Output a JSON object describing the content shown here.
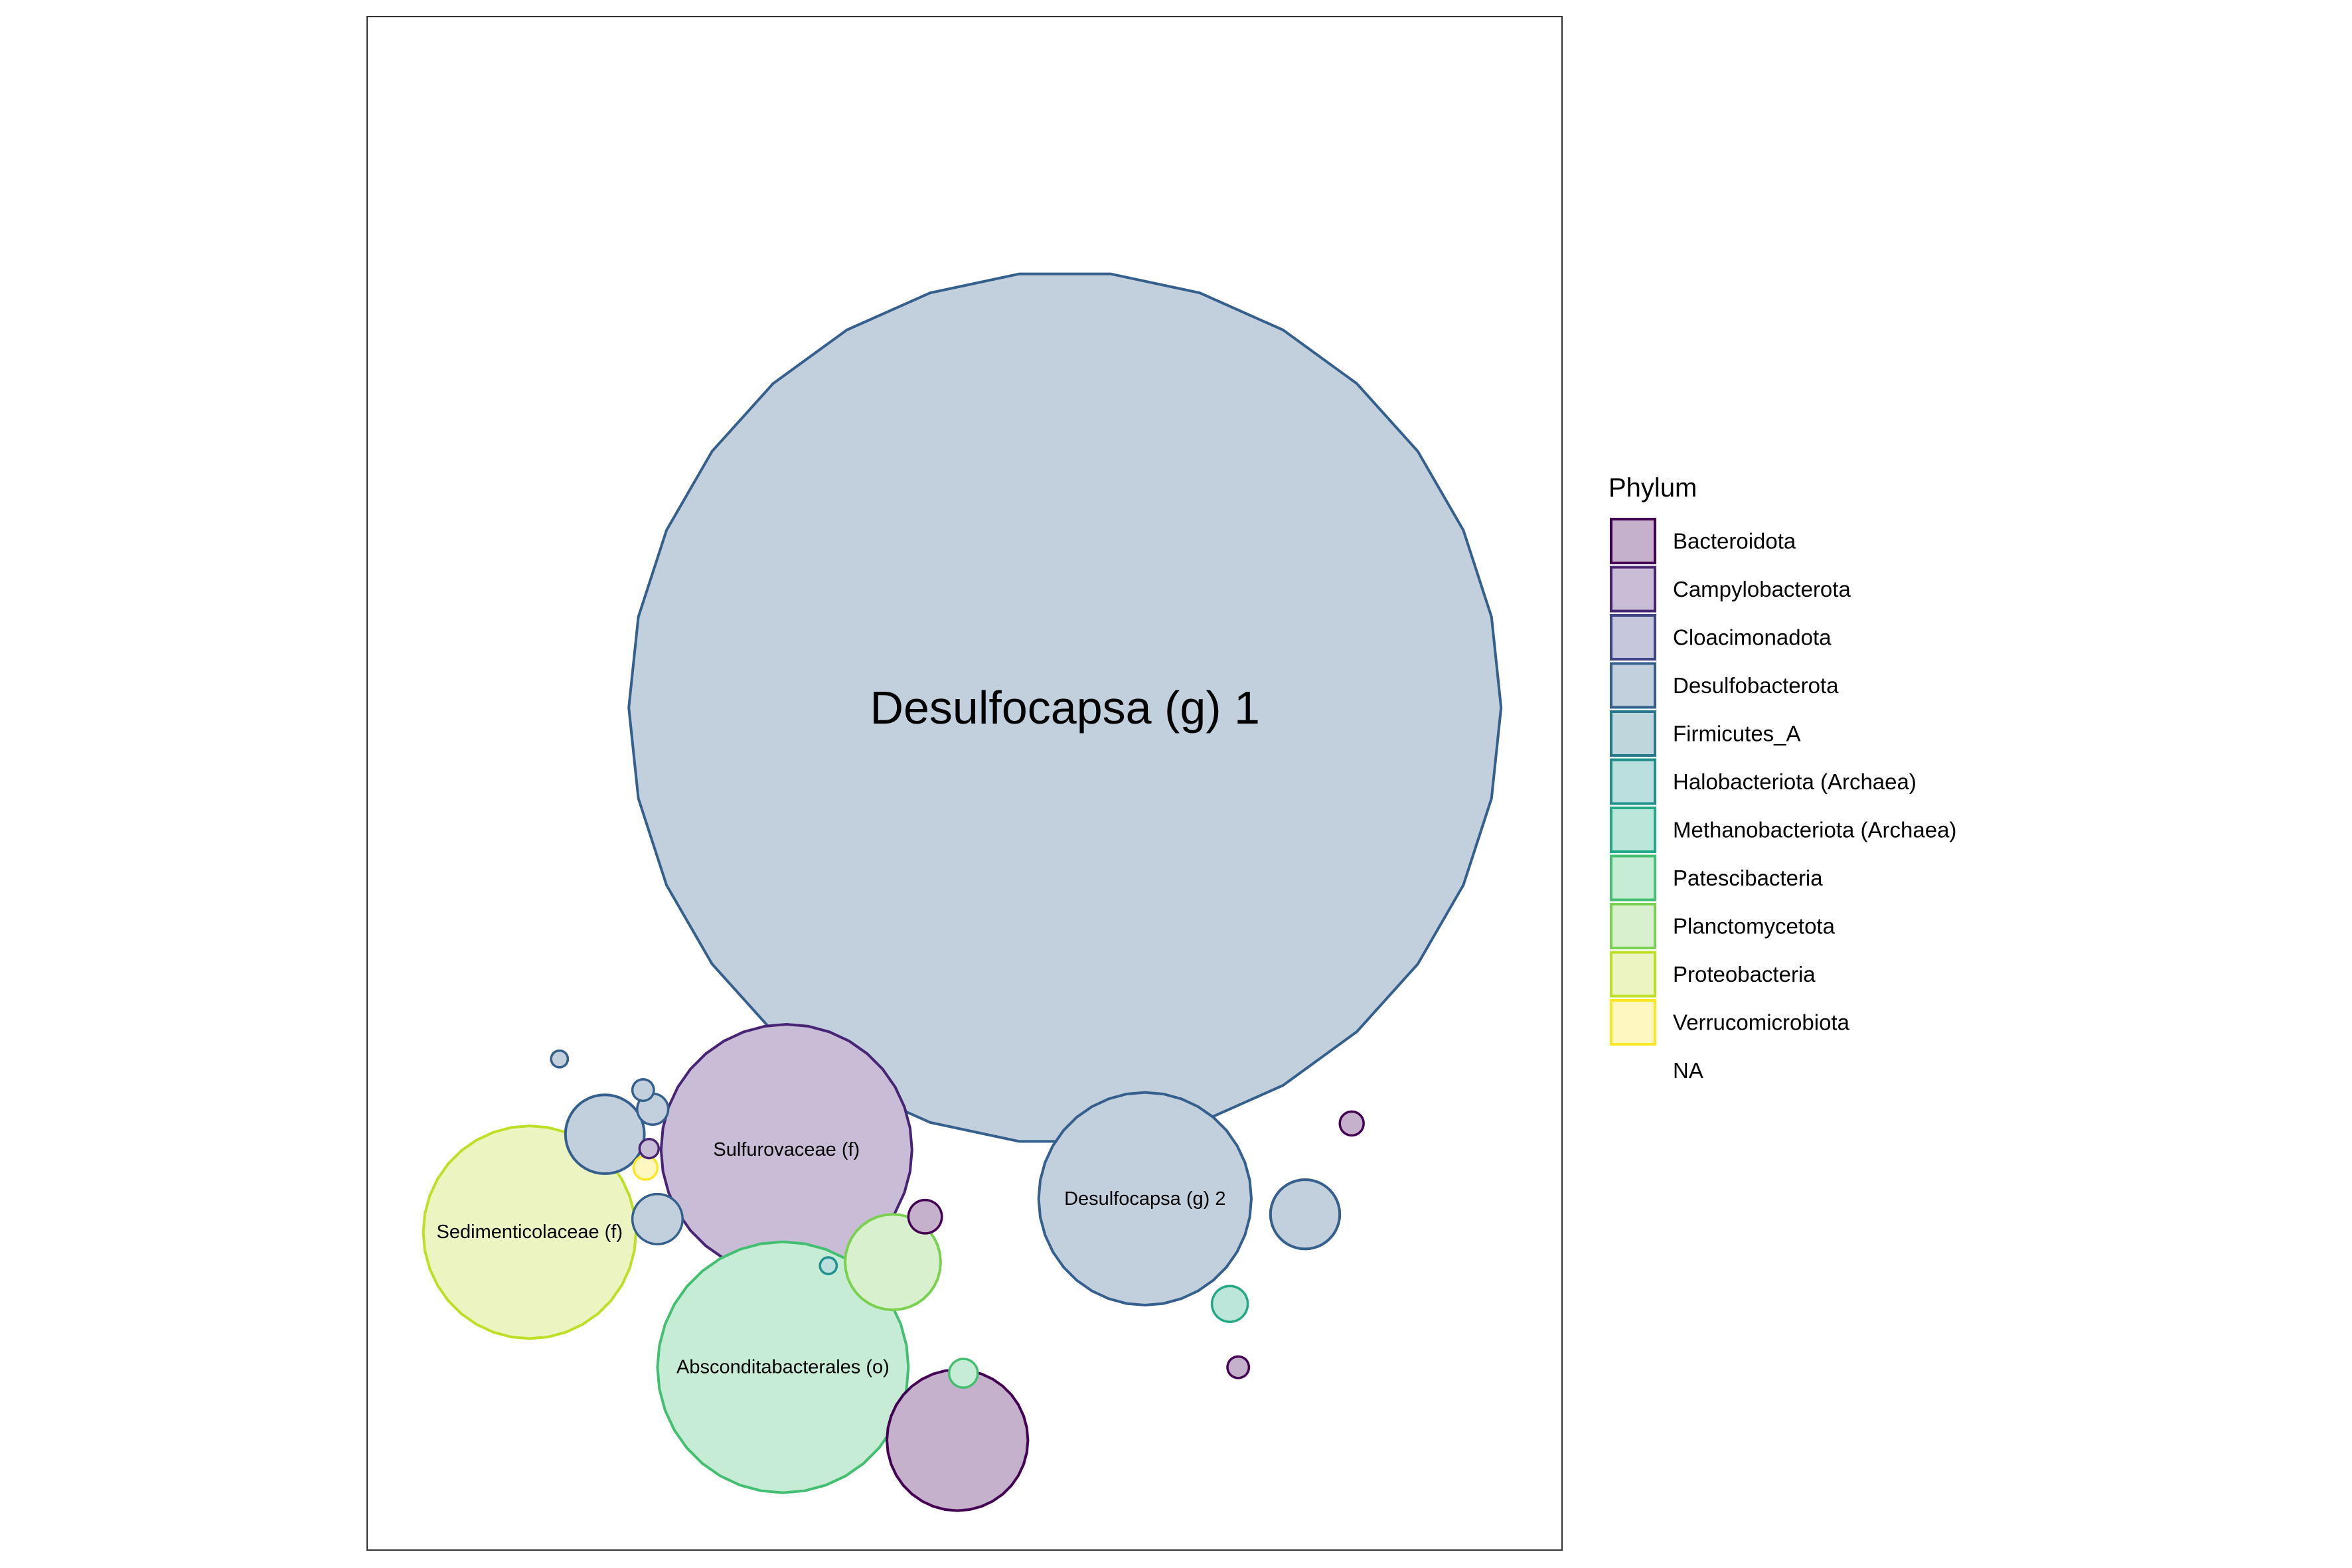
{
  "chart_data": {
    "type": "packed-bubble",
    "title": "",
    "xlabel": "",
    "ylabel": "",
    "legend": {
      "title": "Phylum",
      "placement": "right",
      "entries": [
        {
          "name": "Bacteroidota",
          "stroke": "#440154",
          "fill": "#c6b1cc"
        },
        {
          "name": "Campylobacterota",
          "stroke": "#482475",
          "fill": "#c8bcd6"
        },
        {
          "name": "Cloacimonadota",
          "stroke": "#414487",
          "fill": "#c6c7dc"
        },
        {
          "name": "Desulfobacterota",
          "stroke": "#355f8d",
          "fill": "#c2cfdd"
        },
        {
          "name": "Firmicutes_A",
          "stroke": "#2a788e",
          "fill": "#bfd6dd"
        },
        {
          "name": "Halobacteriota (Archaea)",
          "stroke": "#21908d",
          "fill": "#bbdfde"
        },
        {
          "name": "Methanobacteriota (Archaea)",
          "stroke": "#22a884",
          "fill": "#bce6d9"
        },
        {
          "name": "Patescibacteria",
          "stroke": "#43bf71",
          "fill": "#c6ecd5"
        },
        {
          "name": "Planctomycetota",
          "stroke": "#7ad151",
          "fill": "#d8f0cd"
        },
        {
          "name": "Proteobacteria",
          "stroke": "#bddf26",
          "fill": "#ecf5c1"
        },
        {
          "name": "Verrucomicrobiota",
          "stroke": "#fde725",
          "fill": "#fef7bf"
        },
        {
          "name": "NA",
          "stroke": "none",
          "fill": "none"
        }
      ]
    },
    "bubbles": [
      {
        "label": "Desulfocapsa (g) 1",
        "phylum": "Desulfobacterota",
        "x": 0.584,
        "y": 0.705,
        "r": 0.365
      },
      {
        "label": "Sulfurovaceae (f)",
        "phylum": "Campylobacterota",
        "x": 0.351,
        "y": 0.335,
        "r": 0.105
      },
      {
        "label": "Desulfocapsa (g) 2",
        "phylum": "Desulfobacterota",
        "x": 0.651,
        "y": 0.294,
        "r": 0.089
      },
      {
        "label": "Sedimenticolaceae (f)",
        "phylum": "Proteobacteria",
        "x": 0.136,
        "y": 0.266,
        "r": 0.089
      },
      {
        "label": "Absconditabacterales (o)",
        "phylum": "Patescibacteria",
        "x": 0.348,
        "y": 0.153,
        "r": 0.105
      },
      {
        "label": "",
        "phylum": "Bacteroidota",
        "x": 0.494,
        "y": 0.092,
        "r": 0.059
      },
      {
        "label": "",
        "phylum": "Planctomycetota",
        "x": 0.44,
        "y": 0.241,
        "r": 0.04
      },
      {
        "label": "",
        "phylum": "Desulfobacterota",
        "x": 0.199,
        "y": 0.348,
        "r": 0.033
      },
      {
        "label": "",
        "phylum": "Desulfobacterota",
        "x": 0.785,
        "y": 0.281,
        "r": 0.029
      },
      {
        "label": "",
        "phylum": "Desulfobacterota",
        "x": 0.243,
        "y": 0.277,
        "r": 0.021
      },
      {
        "label": "",
        "phylum": "Methanobacteriota (Archaea)",
        "x": 0.722,
        "y": 0.206,
        "r": 0.015
      },
      {
        "label": "",
        "phylum": "Bacteroidota",
        "x": 0.467,
        "y": 0.279,
        "r": 0.014
      },
      {
        "label": "",
        "phylum": "Desulfobacterota",
        "x": 0.239,
        "y": 0.369,
        "r": 0.013
      },
      {
        "label": "",
        "phylum": "Patescibacteria",
        "x": 0.499,
        "y": 0.148,
        "r": 0.012
      },
      {
        "label": "",
        "phylum": "Desulfobacterota",
        "x": 0.231,
        "y": 0.385,
        "r": 0.009
      },
      {
        "label": "",
        "phylum": "Bacteroidota",
        "x": 0.824,
        "y": 0.357,
        "r": 0.01
      },
      {
        "label": "",
        "phylum": "Bacteroidota",
        "x": 0.729,
        "y": 0.153,
        "r": 0.009
      },
      {
        "label": "",
        "phylum": "Verrucomicrobiota",
        "x": 0.233,
        "y": 0.32,
        "r": 0.01
      },
      {
        "label": "",
        "phylum": "Campylobacterota",
        "x": 0.236,
        "y": 0.336,
        "r": 0.008
      },
      {
        "label": "",
        "phylum": "Desulfobacterota",
        "x": 0.161,
        "y": 0.411,
        "r": 0.007
      },
      {
        "label": "",
        "phylum": "Halobacteriota (Archaea)",
        "x": 0.386,
        "y": 0.238,
        "r": 0.007
      }
    ]
  }
}
